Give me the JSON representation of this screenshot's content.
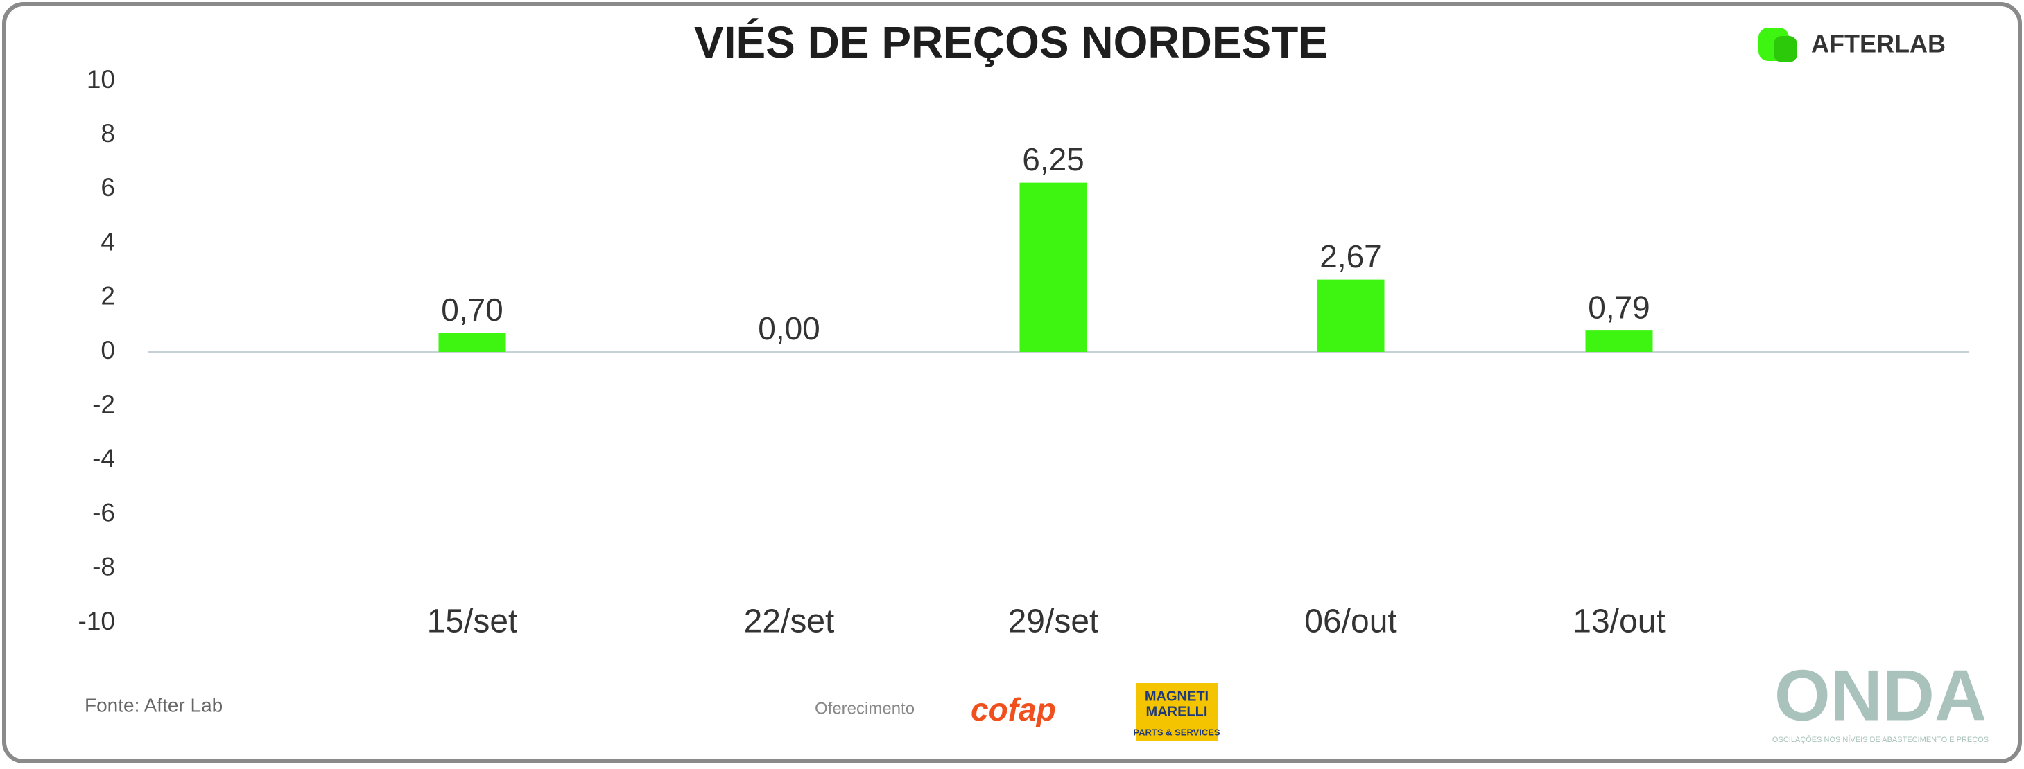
{
  "chart_data": {
    "type": "bar",
    "title": "VIÉS DE PREÇOS NORDESTE",
    "categories": [
      "15/set",
      "22/set",
      "29/set",
      "06/out",
      "13/out"
    ],
    "values": [
      0.7,
      0.0,
      6.25,
      2.67,
      0.79
    ],
    "value_labels": [
      "0,70",
      "0,00",
      "6,25",
      "2,67",
      "0,79"
    ],
    "color": "#3ef512",
    "ylim": [
      -10,
      10
    ],
    "yticks": [
      -10,
      -8,
      -6,
      -4,
      -2,
      0,
      2,
      4,
      6,
      8,
      10
    ]
  },
  "brand": "AFTERLAB",
  "source": "Fonte: After Lab",
  "sponsor_label": "Oferecimento",
  "sponsors": [
    "cofap",
    "MAGNETI",
    "MARELLI",
    "PARTS & SERVICES"
  ],
  "footer_logo": "ONDA",
  "footer_tagline": "OSCILAÇÕES NOS NÍVEIS DE ABASTECIMENTO E PREÇOS"
}
